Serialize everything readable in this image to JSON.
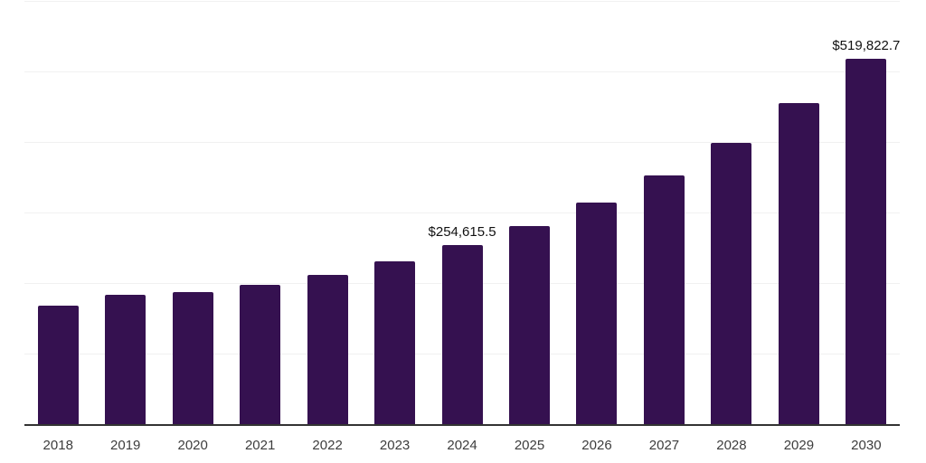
{
  "chart_data": {
    "type": "bar",
    "categories": [
      "2018",
      "2019",
      "2020",
      "2021",
      "2022",
      "2023",
      "2024",
      "2025",
      "2026",
      "2027",
      "2028",
      "2029",
      "2030"
    ],
    "values": [
      168800,
      184100,
      188000,
      198200,
      212300,
      231600,
      254615.5,
      281500,
      314800,
      353300,
      399400,
      455800,
      519822.7
    ],
    "data_labels": [
      {
        "index": 6,
        "text": "$254,615.5"
      },
      {
        "index": 12,
        "text": "$519,822.7"
      }
    ],
    "value_prefix": "$",
    "ylim": [
      0,
      600000
    ],
    "gridline_step": 100000,
    "grid": true,
    "legend": "none",
    "xlabel": "",
    "ylabel": "",
    "colors": {
      "bar": "#351150",
      "axis_line": "#333333",
      "gridline": "#f1f1f1",
      "tick_label": "#3d3d3d",
      "data_label": "#111111",
      "background": "#ffffff"
    }
  }
}
